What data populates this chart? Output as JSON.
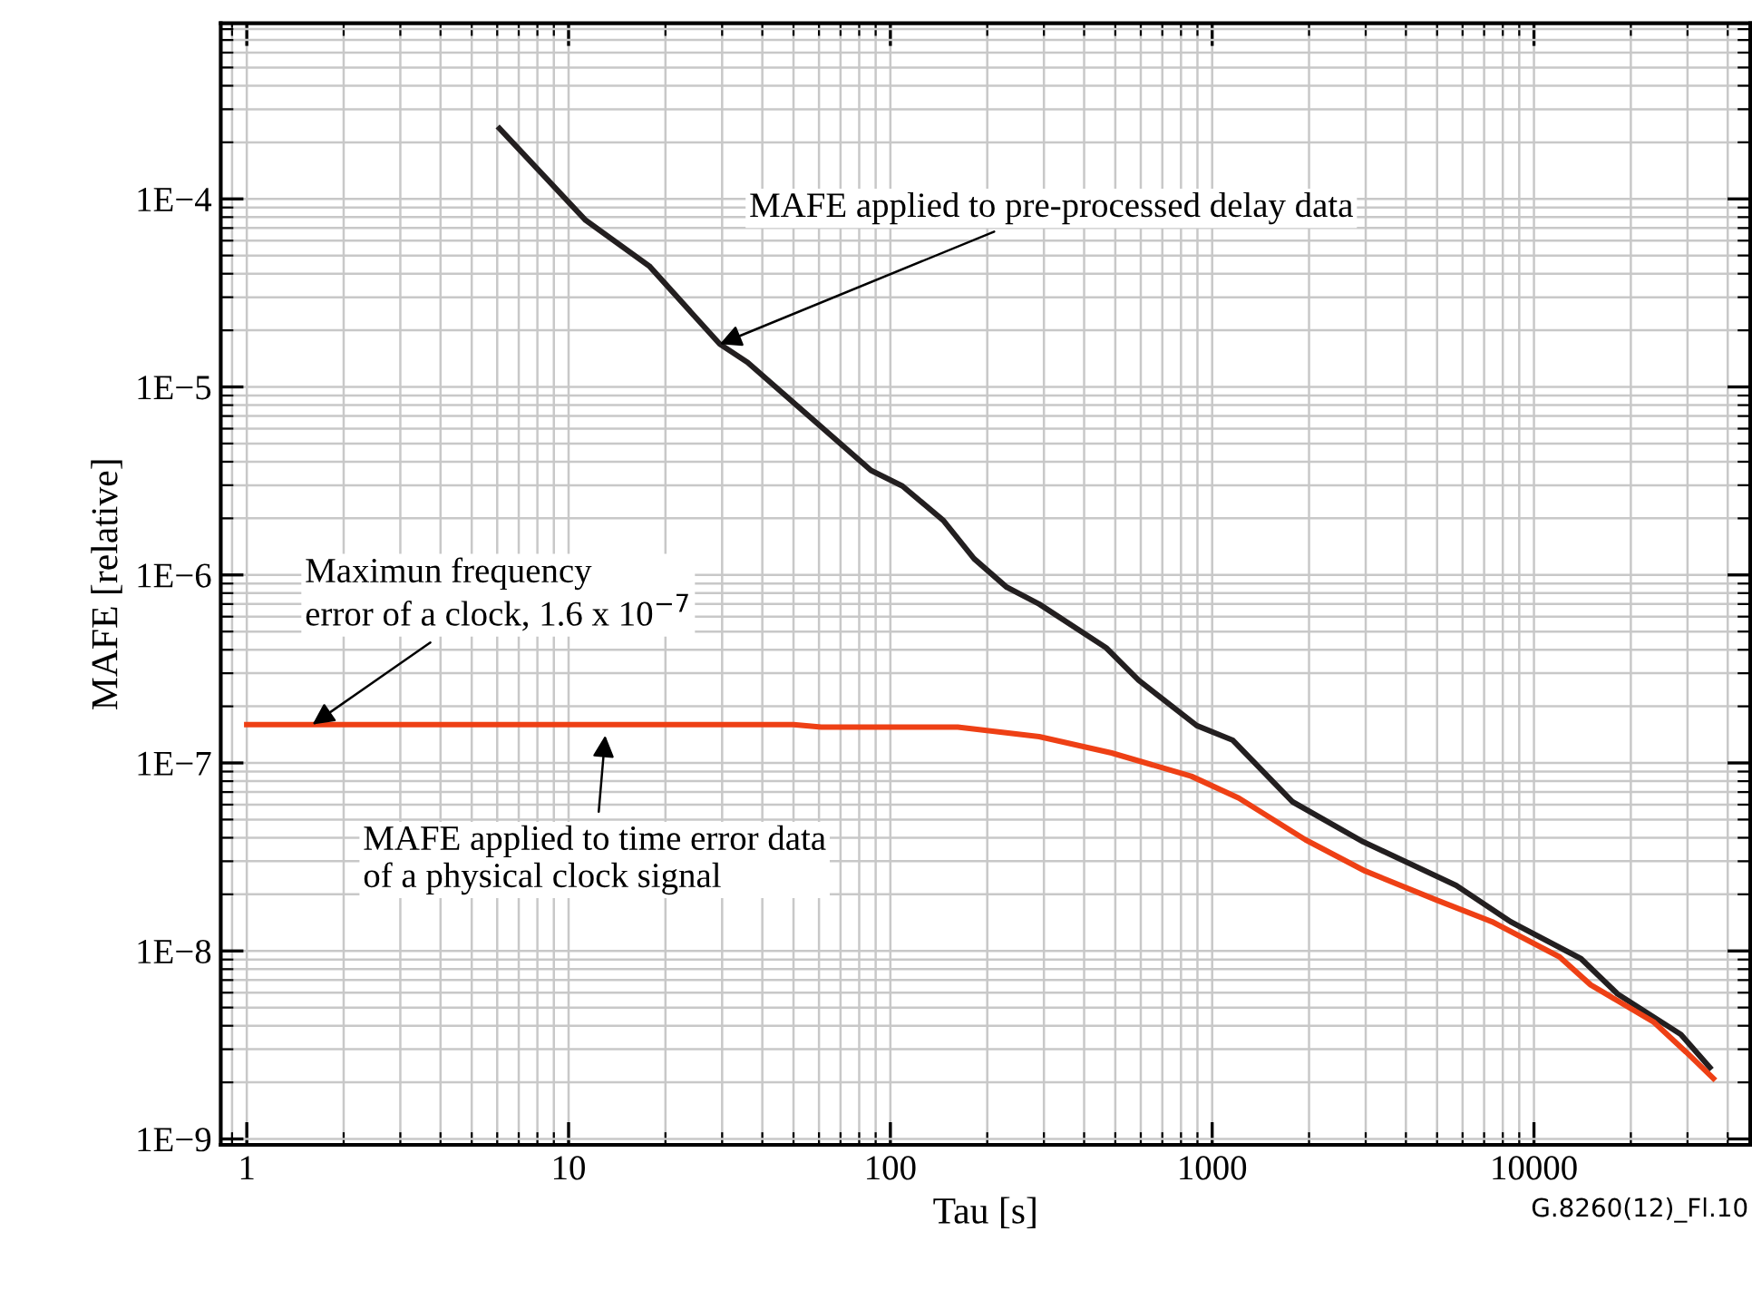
{
  "chart_data": {
    "type": "line",
    "xlabel": "Tau [s]",
    "ylabel": "MAFE [relative]",
    "log": "xy",
    "grid": true,
    "line_style": "solid",
    "marker": "none",
    "xlim": [
      0.83,
      47000
    ],
    "ylim": [
      9.3e-10,
      0.00086
    ],
    "xticks": [
      1,
      10,
      100,
      1000,
      10000
    ],
    "yticks": [
      {
        "value": 1e-09,
        "label": "1E−9"
      },
      {
        "value": 1e-08,
        "label": "1E−8"
      },
      {
        "value": 1e-07,
        "label": "1E−7"
      },
      {
        "value": 1e-06,
        "label": "1E−6"
      },
      {
        "value": 1e-05,
        "label": "1E−5"
      },
      {
        "value": 0.0001,
        "label": "1E−4"
      }
    ],
    "series": [
      {
        "color": "#231f20",
        "x": [
          6.1,
          11.3,
          17.8,
          29.5,
          36,
          87,
          109,
          146,
          182,
          230,
          290,
          468,
          591,
          896,
          1160,
          1780,
          2950,
          5730,
          8460,
          14000,
          18200,
          28600,
          35200
        ],
        "values": [
          0.000237,
          7.7e-05,
          4.4e-05,
          1.69e-05,
          1.35e-05,
          3.6e-06,
          2.97e-06,
          1.95e-06,
          1.22e-06,
          8.6e-07,
          7e-07,
          4.1e-07,
          2.75e-07,
          1.58e-07,
          1.32e-07,
          6.2e-08,
          3.8e-08,
          2.23e-08,
          1.43e-08,
          9.1e-09,
          5.9e-09,
          3.6e-09,
          2.4e-09
        ]
      },
      {
        "color": "#ee4015",
        "x": [
          1,
          50,
          61,
          162,
          290,
          487,
          861,
          1210,
          1950,
          2990,
          5000,
          7410,
          12000,
          15000,
          23500,
          29700,
          36100
        ],
        "values": [
          1.6e-07,
          1.6e-07,
          1.55e-07,
          1.55e-07,
          1.38e-07,
          1.13e-07,
          8.5e-08,
          6.5e-08,
          3.9e-08,
          2.66e-08,
          1.86e-08,
          1.43e-08,
          9.3e-09,
          6.6e-09,
          4.2e-09,
          2.9e-09,
          2.1e-09
        ]
      }
    ],
    "annotations": [
      {
        "text": "MAFE applied to pre-processed delay data",
        "x": 29.5,
        "y": 1.69e-05
      },
      {
        "text": "Maximun frequency\nerror of a clock, 1.6 x 10$^{−7}$",
        "x": 1.6,
        "y": 1.6e-07
      },
      {
        "text": "MAFE applied to time error data\nof a physical clock signal",
        "x": 13,
        "y": 1.4e-07
      },
      "G.8260(12)_Fl.10"
    ]
  }
}
